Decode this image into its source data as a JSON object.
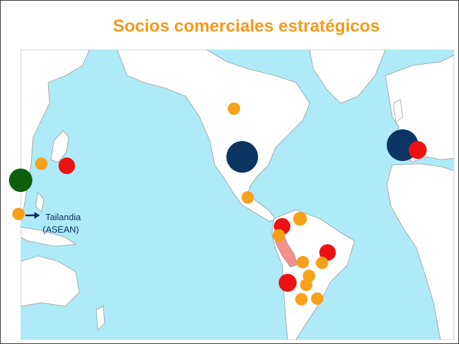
{
  "title": "Socios comerciales estratégicos",
  "annotation": {
    "name": "Tailandia",
    "group": "(ASEAN)"
  }
}
